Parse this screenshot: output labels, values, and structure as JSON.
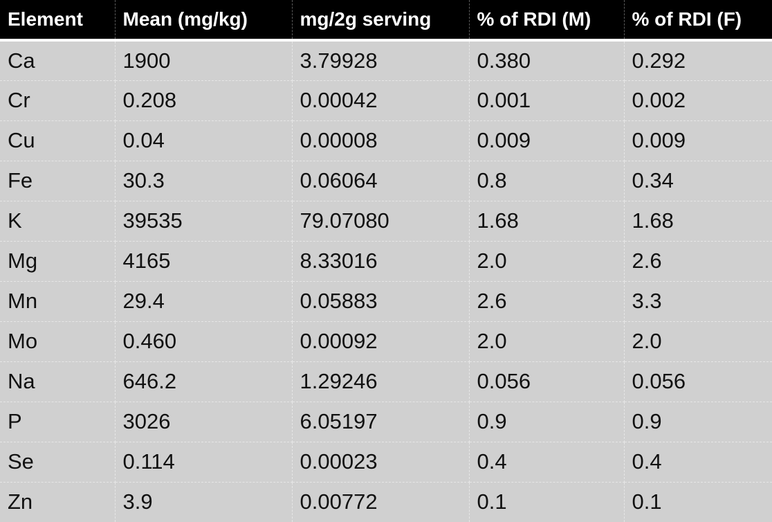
{
  "table": {
    "headers": [
      "Element",
      "Mean (mg/kg)",
      "mg/2g serving",
      "% of RDI (M)",
      "% of RDI (F)"
    ],
    "rows": [
      [
        "Ca",
        "1900",
        "3.79928",
        "0.380",
        "0.292"
      ],
      [
        "Cr",
        "0.208",
        "0.00042",
        "0.001",
        "0.002"
      ],
      [
        "Cu",
        "0.04",
        "0.00008",
        "0.009",
        "0.009"
      ],
      [
        "Fe",
        "30.3",
        "0.06064",
        "0.8",
        "0.34"
      ],
      [
        "K",
        "39535",
        "79.07080",
        "1.68",
        "1.68"
      ],
      [
        "Mg",
        "4165",
        "8.33016",
        "2.0",
        "2.6"
      ],
      [
        "Mn",
        "29.4",
        "0.05883",
        "2.6",
        "3.3"
      ],
      [
        "Mo",
        "0.460",
        "0.00092",
        "2.0",
        "2.0"
      ],
      [
        "Na",
        "646.2",
        "1.29246",
        "0.056",
        "0.056"
      ],
      [
        "P",
        "3026",
        "6.05197",
        "0.9",
        "0.9"
      ],
      [
        "Se",
        "0.114",
        "0.00023",
        "0.4",
        "0.4"
      ],
      [
        "Zn",
        "3.9",
        "0.00772",
        "0.1",
        "0.1"
      ]
    ]
  }
}
